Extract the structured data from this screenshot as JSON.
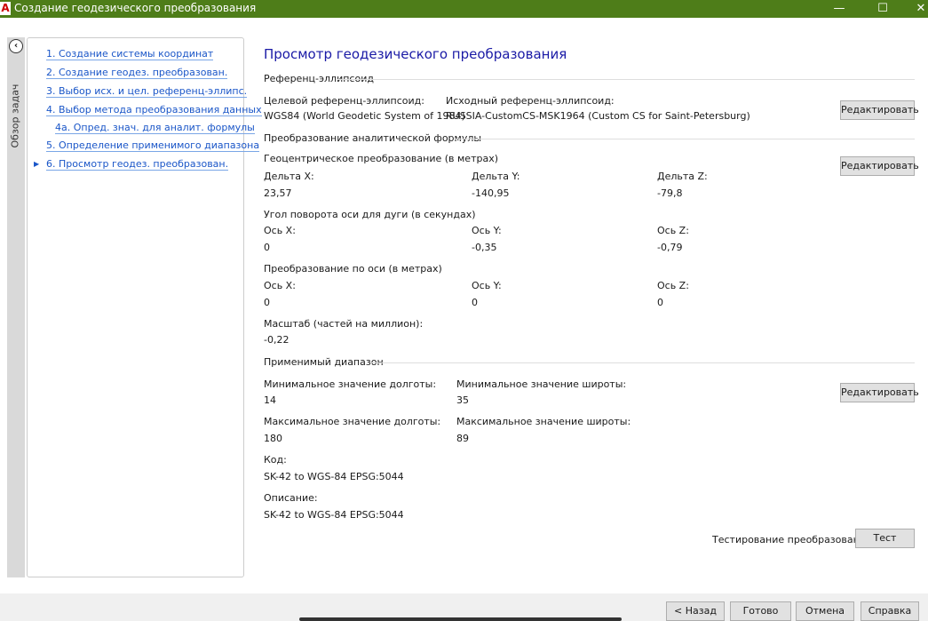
{
  "window": {
    "title": "Создание геодезического преобразования",
    "minimize": "—",
    "maximize": "☐",
    "close": "✕"
  },
  "sidebar": {
    "label": "Обзор задач",
    "items": [
      {
        "label": "1. Создание системы координат"
      },
      {
        "label": "2. Создание геодез. преобразован."
      },
      {
        "label": "3. Выбор исх. и цел. референц-эллипс."
      },
      {
        "label": "4. Выбор метода преобразования данных"
      },
      {
        "label": "4a. Опред. знач. для аналит. формулы"
      },
      {
        "label": "5. Определение применимого диапазона"
      },
      {
        "label": "6. Просмотр геодез. преобразован.",
        "current": true
      }
    ]
  },
  "main": {
    "heading": "Просмотр геодезического преобразования",
    "ellipsoid": {
      "section": "Референц-эллипсоид",
      "target_label": "Целевой референц-эллипсоид:",
      "target_value": "WGS84 (World Geodetic System of 1984)",
      "source_label": "Исходный референц-эллипсоид:",
      "source_value": "RUSSIA-CustomCS-MSK1964 (Custom CS for Saint-Petersburg)",
      "edit": "Редактировать"
    },
    "formula": {
      "section": "Преобразование аналитической формулы",
      "geocentric": {
        "label": "Геоцентрическое преобразование (в метрах)",
        "dx_label": "Дельта X:",
        "dx": "23,57",
        "dy_label": "Дельта Y:",
        "dy": "-140,95",
        "dz_label": "Дельта Z:",
        "dz": "-79,8"
      },
      "rotation": {
        "label": "Угол поворота оси для дуги (в секундах)",
        "x_label": "Ось X:",
        "x": "0",
        "y_label": "Ось Y:",
        "y": "-0,35",
        "z_label": "Ось Z:",
        "z": "-0,79"
      },
      "translation": {
        "label": "Преобразование по оси (в метрах)",
        "x_label": "Ось X:",
        "x": "0",
        "y_label": "Ось Y:",
        "y": "0",
        "z_label": "Ось Z:",
        "z": "0"
      },
      "scale_label": "Масштаб (частей на миллион):",
      "scale": "-0,22",
      "edit": "Редактировать"
    },
    "range": {
      "section": "Применимый диапазон",
      "min_lon_label": "Минимальное значение долготы:",
      "min_lon": "14",
      "min_lat_label": "Минимальное значение широты:",
      "min_lat": "35",
      "max_lon_label": "Максимальное значение долготы:",
      "max_lon": "180",
      "max_lat_label": "Максимальное значение широты:",
      "max_lat": "89",
      "edit": "Редактировать"
    },
    "code_label": "Код:",
    "code": "SK-42 to WGS-84 EPSG:5044",
    "desc_label": "Описание:",
    "desc": "SK-42 to WGS-84 EPSG:5044",
    "test_label": "Тестирование преобразования",
    "test_button": "Тест"
  },
  "footer": {
    "back": "< Назад",
    "finish": "Готово",
    "cancel": "Отмена",
    "help": "Справка"
  }
}
